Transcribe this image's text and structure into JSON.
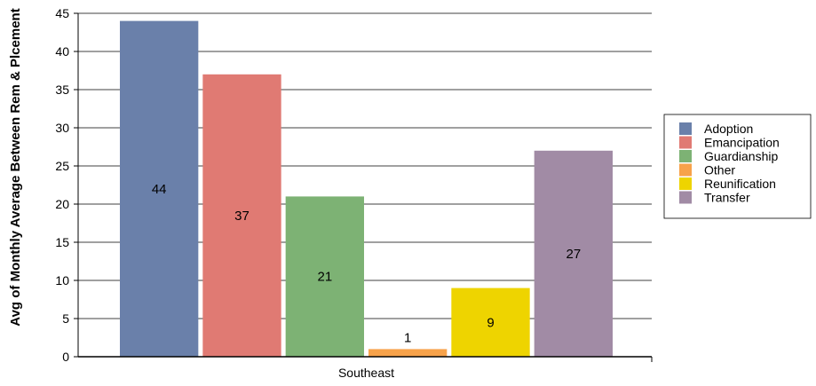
{
  "chart_data": {
    "type": "bar",
    "categories": [
      "Southeast"
    ],
    "series": [
      {
        "name": "Adoption",
        "values": [
          44
        ],
        "label": "44",
        "color": "#6a80aa"
      },
      {
        "name": "Emancipation",
        "values": [
          37
        ],
        "label": "37",
        "color": "#e07a73"
      },
      {
        "name": "Guardianship",
        "values": [
          21
        ],
        "label": "21",
        "color": "#7db274"
      },
      {
        "name": "Other",
        "values": [
          1
        ],
        "label": "1",
        "color": "#f7a24a"
      },
      {
        "name": "Reunification",
        "values": [
          9
        ],
        "label": "9",
        "color": "#eed400"
      },
      {
        "name": "Transfer",
        "values": [
          27
        ],
        "label": "27",
        "color": "#a18ba5"
      }
    ],
    "title": "",
    "xlabel": "",
    "ylabel": "Avg of Monthly Average Between Rem & Plcement",
    "ylim": [
      0,
      45
    ],
    "yticks": [
      0,
      5,
      10,
      15,
      20,
      25,
      30,
      35,
      40,
      45
    ],
    "grid": true,
    "legend": "right"
  }
}
